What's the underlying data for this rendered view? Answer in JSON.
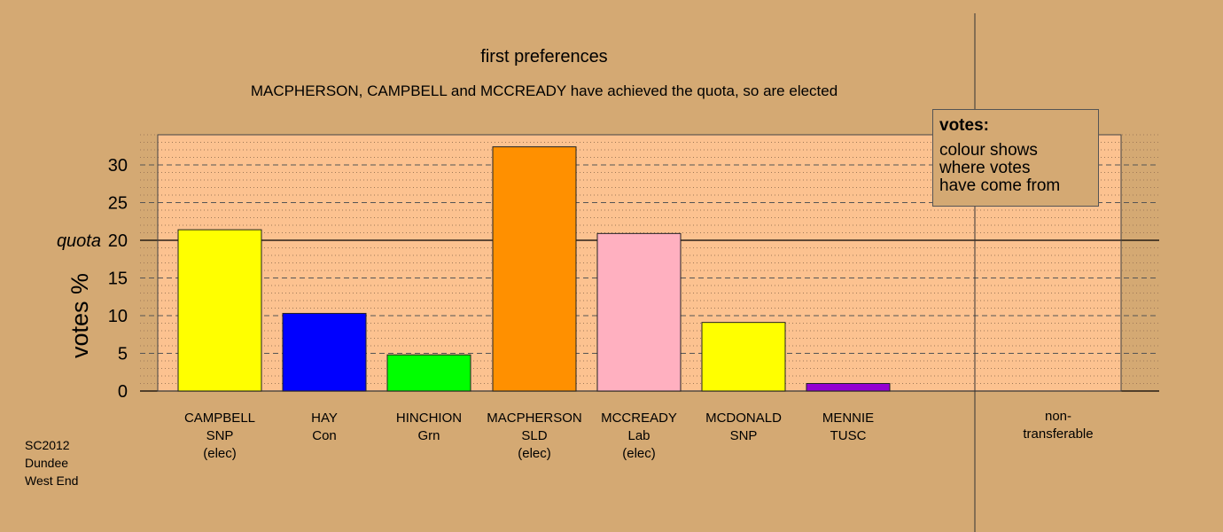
{
  "chart_data": {
    "type": "bar",
    "title": "first preferences",
    "subtitle": "MACPHERSON, CAMPBELL and MCCREADY have achieved the quota, so are elected",
    "ylabel": "votes %",
    "ylim": [
      0,
      34
    ],
    "yticks": [
      0,
      5,
      10,
      15,
      20,
      25,
      30
    ],
    "quota": {
      "value": 20,
      "label": "quota"
    },
    "grid": true,
    "categories": [
      {
        "name": "CAMPBELL",
        "party": "SNP",
        "status": "(elec)"
      },
      {
        "name": "HAY",
        "party": "Con",
        "status": ""
      },
      {
        "name": "HINCHION",
        "party": "Grn",
        "status": ""
      },
      {
        "name": "MACPHERSON",
        "party": "SLD",
        "status": "(elec)"
      },
      {
        "name": "MCCREADY",
        "party": "Lab",
        "status": "(elec)"
      },
      {
        "name": "MCDONALD",
        "party": "SNP",
        "status": ""
      },
      {
        "name": "MENNIE",
        "party": "TUSC",
        "status": ""
      }
    ],
    "values": [
      21.4,
      10.3,
      4.8,
      32.4,
      20.9,
      9.1,
      1.0
    ],
    "colors": [
      "#ffff00",
      "#0000ff",
      "#00ff00",
      "#ff9000",
      "#ffb0c0",
      "#ffff00",
      "#9400d3"
    ],
    "non_transferable": {
      "label_line1": "non-",
      "label_line2": "transferable",
      "value": 0
    }
  },
  "legend": {
    "title": "votes:",
    "body": "colour shows\nwhere votes\nhave come from"
  },
  "footer": [
    "SC2012",
    "Dundee",
    "West End"
  ]
}
